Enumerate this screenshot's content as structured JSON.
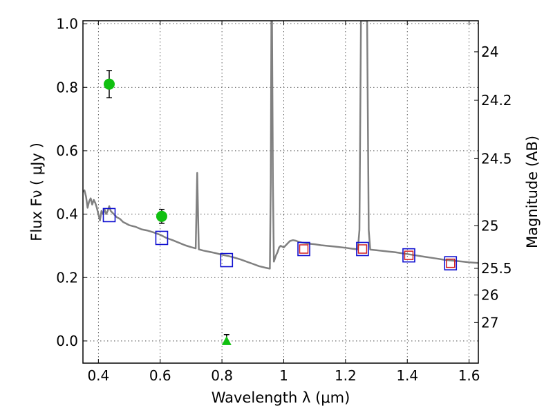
{
  "chart_data": {
    "type": "scatter",
    "xlabel": "Wavelength  λ (μm)",
    "ylabel": "Flux  Fν  ( μJy )",
    "y2label": "Magnitude (AB)",
    "xlim": [
      0.35,
      1.63
    ],
    "ylim": [
      -0.07,
      1.01
    ],
    "grid": true,
    "x_ticks": [
      {
        "value": 0.4,
        "label": "0.4"
      },
      {
        "value": 0.6,
        "label": "0.6"
      },
      {
        "value": 0.8,
        "label": "0.8"
      },
      {
        "value": 1.0,
        "label": "1"
      },
      {
        "value": 1.2,
        "label": "1.2"
      },
      {
        "value": 1.4,
        "label": "1.4"
      },
      {
        "value": 1.6,
        "label": "1.6"
      }
    ],
    "y_ticks": [
      {
        "value": 0.0,
        "label": "0.0"
      },
      {
        "value": 0.2,
        "label": "0.2"
      },
      {
        "value": 0.4,
        "label": "0.4"
      },
      {
        "value": 0.6,
        "label": "0.6"
      },
      {
        "value": 0.8,
        "label": "0.8"
      },
      {
        "value": 1.0,
        "label": "1.0"
      }
    ],
    "y2_ticks": [
      {
        "flux": 0.912,
        "label": "24"
      },
      {
        "flux": 0.759,
        "label": "24.2"
      },
      {
        "flux": 0.575,
        "label": "24.5"
      },
      {
        "flux": 0.363,
        "label": "25"
      },
      {
        "flux": 0.229,
        "label": "25.5"
      },
      {
        "flux": 0.145,
        "label": "26"
      },
      {
        "flux": 0.058,
        "label": "27"
      }
    ],
    "model_spectrum": {
      "color": "#808080",
      "points": [
        [
          0.35,
          0.47
        ],
        [
          0.355,
          0.475
        ],
        [
          0.36,
          0.455
        ],
        [
          0.365,
          0.42
        ],
        [
          0.37,
          0.44
        ],
        [
          0.375,
          0.45
        ],
        [
          0.38,
          0.43
        ],
        [
          0.385,
          0.445
        ],
        [
          0.39,
          0.435
        ],
        [
          0.395,
          0.42
        ],
        [
          0.4,
          0.4
        ],
        [
          0.405,
          0.38
        ],
        [
          0.41,
          0.41
        ],
        [
          0.415,
          0.4
        ],
        [
          0.42,
          0.415
        ],
        [
          0.425,
          0.4
        ],
        [
          0.43,
          0.41
        ],
        [
          0.435,
          0.425
        ],
        [
          0.44,
          0.41
        ],
        [
          0.45,
          0.4
        ],
        [
          0.46,
          0.39
        ],
        [
          0.47,
          0.385
        ],
        [
          0.48,
          0.375
        ],
        [
          0.49,
          0.37
        ],
        [
          0.5,
          0.365
        ],
        [
          0.52,
          0.36
        ],
        [
          0.54,
          0.352
        ],
        [
          0.56,
          0.348
        ],
        [
          0.58,
          0.342
        ],
        [
          0.6,
          0.335
        ],
        [
          0.62,
          0.325
        ],
        [
          0.64,
          0.318
        ],
        [
          0.66,
          0.31
        ],
        [
          0.68,
          0.302
        ],
        [
          0.7,
          0.296
        ],
        [
          0.715,
          0.292
        ],
        [
          0.72,
          0.53
        ],
        [
          0.725,
          0.289
        ],
        [
          0.74,
          0.285
        ],
        [
          0.76,
          0.281
        ],
        [
          0.78,
          0.277
        ],
        [
          0.8,
          0.272
        ],
        [
          0.82,
          0.268
        ],
        [
          0.84,
          0.263
        ],
        [
          0.86,
          0.257
        ],
        [
          0.88,
          0.25
        ],
        [
          0.9,
          0.243
        ],
        [
          0.92,
          0.236
        ],
        [
          0.94,
          0.231
        ],
        [
          0.955,
          0.228
        ],
        [
          0.958,
          0.5
        ],
        [
          0.96,
          1.01
        ],
        [
          0.962,
          1.01
        ],
        [
          0.965,
          0.5
        ],
        [
          0.968,
          0.25
        ],
        [
          0.975,
          0.27
        ],
        [
          0.98,
          0.28
        ],
        [
          0.985,
          0.295
        ],
        [
          0.99,
          0.3
        ],
        [
          1.0,
          0.295
        ],
        [
          1.01,
          0.305
        ],
        [
          1.02,
          0.315
        ],
        [
          1.03,
          0.318
        ],
        [
          1.04,
          0.316
        ],
        [
          1.05,
          0.312
        ],
        [
          1.06,
          0.31
        ],
        [
          1.08,
          0.307
        ],
        [
          1.1,
          0.305
        ],
        [
          1.12,
          0.302
        ],
        [
          1.14,
          0.3
        ],
        [
          1.16,
          0.298
        ],
        [
          1.18,
          0.296
        ],
        [
          1.2,
          0.294
        ],
        [
          1.22,
          0.291
        ],
        [
          1.24,
          0.289
        ],
        [
          1.245,
          0.35
        ],
        [
          1.25,
          1.01
        ],
        [
          1.27,
          1.01
        ],
        [
          1.275,
          0.35
        ],
        [
          1.28,
          0.288
        ],
        [
          1.3,
          0.286
        ],
        [
          1.32,
          0.284
        ],
        [
          1.34,
          0.282
        ],
        [
          1.36,
          0.28
        ],
        [
          1.38,
          0.277
        ],
        [
          1.4,
          0.274
        ],
        [
          1.42,
          0.271
        ],
        [
          1.44,
          0.268
        ],
        [
          1.46,
          0.265
        ],
        [
          1.48,
          0.262
        ],
        [
          1.5,
          0.259
        ],
        [
          1.52,
          0.256
        ],
        [
          1.54,
          0.254
        ],
        [
          1.56,
          0.252
        ],
        [
          1.58,
          0.25
        ],
        [
          1.6,
          0.248
        ],
        [
          1.63,
          0.246
        ]
      ]
    },
    "model_photometry": {
      "color": "#1010d0",
      "points": [
        [
          0.435,
          0.397
        ],
        [
          0.605,
          0.325
        ],
        [
          0.815,
          0.255
        ],
        [
          1.065,
          0.29
        ],
        [
          1.255,
          0.29
        ],
        [
          1.405,
          0.27
        ],
        [
          1.54,
          0.245
        ]
      ]
    },
    "observed_photometry_red": {
      "color": "#d02020",
      "points": [
        [
          1.065,
          0.29
        ],
        [
          1.255,
          0.29
        ],
        [
          1.405,
          0.27
        ],
        [
          1.54,
          0.245
        ]
      ]
    },
    "detections": {
      "color": "#10c010",
      "points": [
        {
          "x": 0.435,
          "y": 0.81,
          "err": 0.043
        },
        {
          "x": 0.605,
          "y": 0.393,
          "err": 0.022
        }
      ]
    },
    "upper_limit": {
      "color": "#10c010",
      "point": {
        "x": 0.815,
        "y": 0.0,
        "err": 0.02
      }
    }
  }
}
